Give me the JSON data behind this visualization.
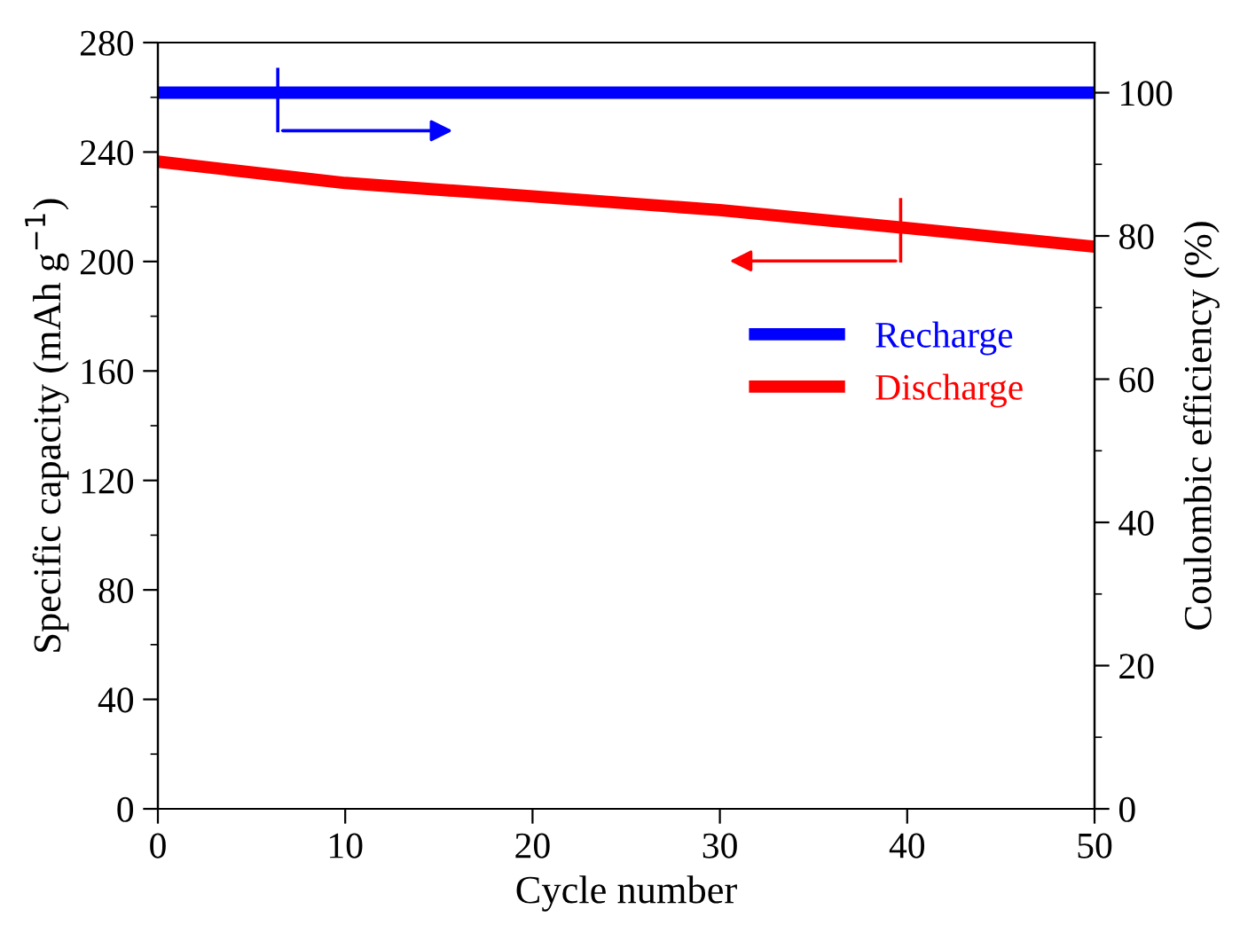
{
  "chart_data": {
    "type": "line",
    "xlabel": "Cycle number",
    "ylabel": "Specific capacity (mAh g$^{−1}$)",
    "y2label": "Coulombic efficiency (%)",
    "x": [
      0,
      10,
      20,
      30,
      40,
      50
    ],
    "series": [
      {
        "name": "Recharge",
        "color": "#0000ff",
        "axis": "y2",
        "values": [
          100,
          100,
          100,
          100,
          100,
          100
        ]
      },
      {
        "name": "Discharge",
        "color": "#ff0000",
        "axis": "y",
        "values": [
          236.5,
          228.7,
          223.8,
          218.8,
          212.2,
          205.4
        ]
      }
    ],
    "xlim": [
      0,
      50
    ],
    "xticks": [
      0,
      10,
      20,
      30,
      40,
      50
    ],
    "ylim": [
      0,
      280
    ],
    "yticks": [
      0,
      40,
      80,
      120,
      160,
      200,
      240,
      280
    ],
    "y2lim": [
      0,
      107
    ],
    "y2ticks": [
      0,
      20,
      40,
      60,
      80,
      100
    ],
    "grid": false,
    "legend": "right",
    "marker": "none",
    "line_style": "solid"
  }
}
